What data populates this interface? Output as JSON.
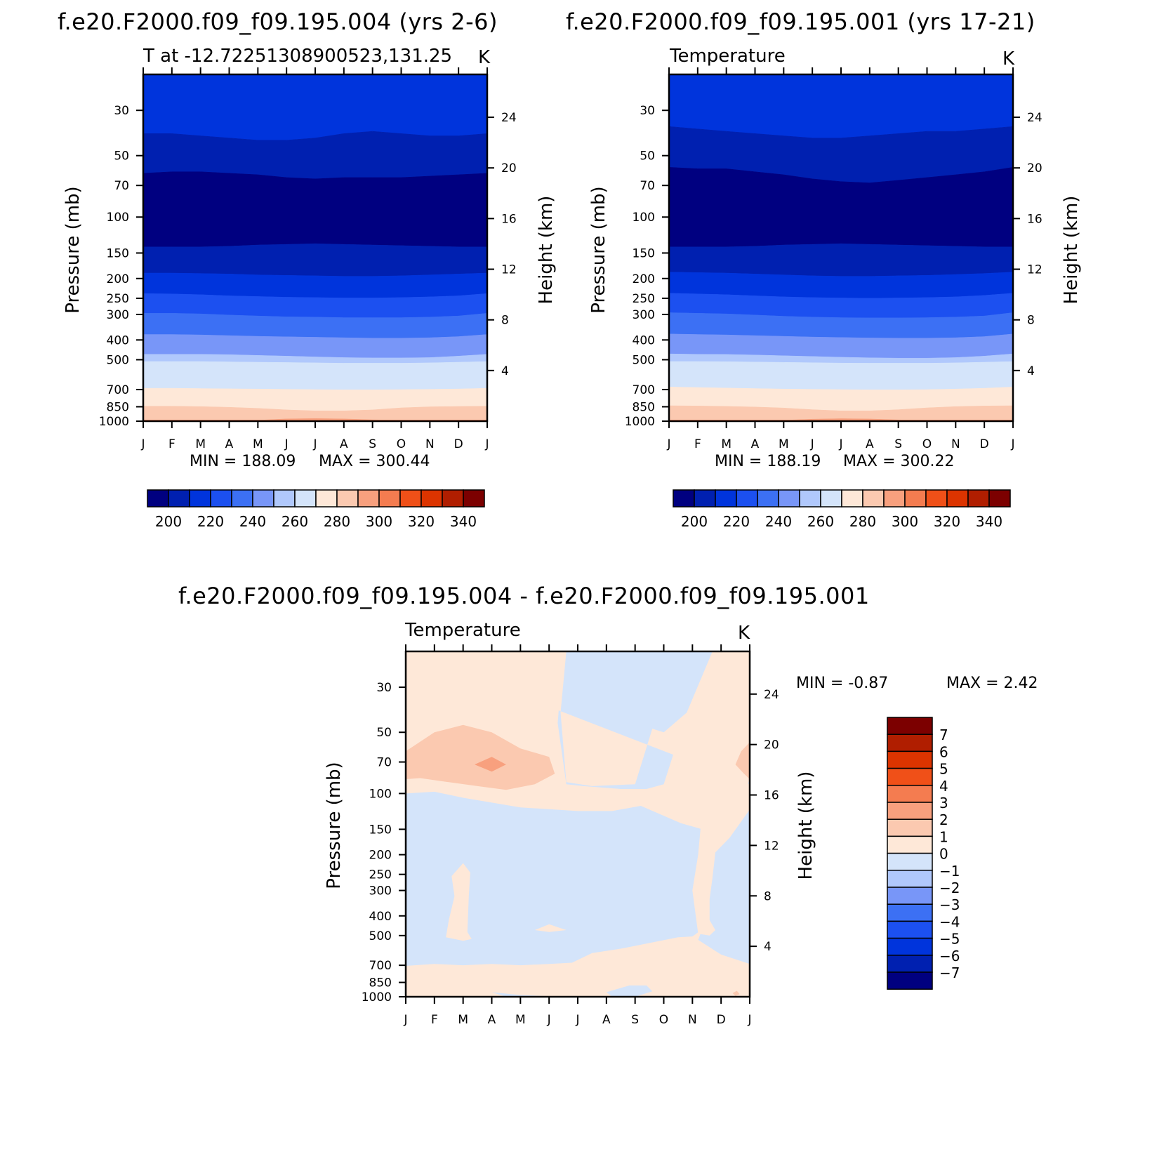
{
  "figure": {
    "background": "#ffffff"
  },
  "shared": {
    "months": [
      "J",
      "F",
      "M",
      "A",
      "M",
      "J",
      "J",
      "A",
      "S",
      "O",
      "N",
      "D",
      "J"
    ],
    "pressure_ticks": [
      30,
      50,
      70,
      100,
      150,
      200,
      250,
      300,
      400,
      500,
      700,
      850,
      1000
    ],
    "height_ticks": [
      4,
      8,
      12,
      16,
      20,
      24
    ],
    "pressure_axis_label": "Pressure (mb)",
    "height_axis_label": "Height (km)",
    "abs_palette": [
      "#000080",
      "#0020b0",
      "#0034dc",
      "#1c50f0",
      "#3c70f4",
      "#7896f8",
      "#b0c8fc",
      "#d4e4fa",
      "#fee8d8",
      "#fbc9b0",
      "#f8a07e",
      "#f47c50",
      "#f05018",
      "#dc3400",
      "#b01e00",
      "#7c0000"
    ],
    "abs_levels": [
      190,
      200,
      210,
      220,
      230,
      240,
      250,
      260,
      270,
      280,
      290,
      300,
      310,
      320,
      330,
      340,
      350
    ]
  },
  "chart_data": [
    {
      "type": "heatmap",
      "panel": "left",
      "title": "f.e20.F2000.f09_f09.195.004 (yrs 2-6)",
      "subtitle_left": "T at -12.72251308900523,131.25",
      "subtitle_right": "K",
      "xlabel": "",
      "ylabel": "Pressure (mb)",
      "y2label": "Height (km)",
      "x": [
        "J",
        "F",
        "M",
        "A",
        "M",
        "J",
        "J",
        "A",
        "S",
        "O",
        "N",
        "D",
        "J"
      ],
      "y_pressure": [
        30,
        50,
        70,
        100,
        150,
        200,
        250,
        300,
        400,
        500,
        700,
        850,
        1000
      ],
      "ylim": [
        1000,
        20
      ],
      "min_text": "MIN = 188.09",
      "max_text": "MAX = 300.44",
      "min": 188.09,
      "max": 300.44,
      "colorbar_labels": [
        "200",
        "220",
        "240",
        "260",
        "280",
        "300",
        "320",
        "340"
      ],
      "contour_boundaries_mb": {
        "note": "level-by-month approximate pressure of contour boundaries",
        "210": [
          39,
          39,
          40,
          41,
          42,
          42,
          41,
          39,
          38,
          39,
          40,
          40,
          39
        ],
        "200": [
          61,
          60,
          60,
          61,
          62,
          64,
          65,
          64,
          64,
          64,
          63,
          62,
          61
        ],
        "190": [
          140,
          140,
          140,
          139,
          137,
          136,
          135,
          136,
          137,
          138,
          139,
          140,
          140
        ],
        "220": [
          188,
          188,
          189,
          190,
          192,
          193,
          194,
          195,
          195,
          194,
          192,
          190,
          188
        ],
        "230": [
          237,
          238,
          240,
          243,
          245,
          247,
          248,
          249,
          249,
          248,
          246,
          243,
          237
        ],
        "240": [
          296,
          296,
          298,
          302,
          305,
          308,
          309,
          311,
          311,
          311,
          309,
          305,
          296
        ],
        "250": [
          376,
          376,
          378,
          381,
          384,
          386,
          388,
          390,
          392,
          392,
          390,
          385,
          376
        ],
        "260": [
          470,
          470,
          470,
          472,
          476,
          480,
          484,
          488,
          490,
          490,
          488,
          480,
          470
        ],
        "270": [
          510,
          510,
          510,
          512,
          514,
          516,
          518,
          520,
          520,
          520,
          518,
          514,
          510
        ],
        "280": [
          690,
          690,
          692,
          694,
          696,
          698,
          700,
          702,
          702,
          700,
          698,
          695,
          690
        ],
        "290": [
          845,
          845,
          848,
          855,
          865,
          880,
          890,
          890,
          880,
          860,
          850,
          847,
          845
        ],
        "300": [
          990,
          990,
          990,
          990,
          990,
          975,
          970,
          975,
          985,
          990,
          990,
          990,
          990
        ]
      }
    },
    {
      "type": "heatmap",
      "panel": "right",
      "title": "f.e20.F2000.f09_f09.195.001 (yrs 17-21)",
      "subtitle_left": "Temperature",
      "subtitle_right": "K",
      "xlabel": "",
      "ylabel": "Pressure (mb)",
      "y2label": "Height (km)",
      "x": [
        "J",
        "F",
        "M",
        "A",
        "M",
        "J",
        "J",
        "A",
        "S",
        "O",
        "N",
        "D",
        "J"
      ],
      "y_pressure": [
        30,
        50,
        70,
        100,
        150,
        200,
        250,
        300,
        400,
        500,
        700,
        850,
        1000
      ],
      "ylim": [
        1000,
        20
      ],
      "min_text": "MIN = 188.19",
      "max_text": "MAX = 300.22",
      "min": 188.19,
      "max": 300.22,
      "colorbar_labels": [
        "200",
        "220",
        "240",
        "260",
        "280",
        "300",
        "320",
        "340"
      ],
      "contour_boundaries_mb": {
        "note": "level-by-month approximate pressure of contour boundaries",
        "210": [
          36,
          37,
          38,
          39,
          40,
          41,
          41,
          40,
          39,
          38,
          38,
          37,
          36
        ],
        "200": [
          57,
          58,
          58,
          60,
          62,
          65,
          67,
          68,
          66,
          64,
          62,
          60,
          57
        ],
        "190": [
          140,
          140,
          140,
          139,
          137,
          136,
          135,
          136,
          137,
          138,
          139,
          140,
          140
        ],
        "220": [
          186,
          187,
          188,
          190,
          192,
          194,
          195,
          195,
          194,
          193,
          191,
          189,
          186
        ],
        "230": [
          236,
          238,
          240,
          243,
          246,
          248,
          249,
          250,
          249,
          248,
          246,
          242,
          236
        ],
        "240": [
          294,
          296,
          298,
          302,
          306,
          309,
          311,
          312,
          312,
          311,
          309,
          305,
          294
        ],
        "250": [
          374,
          376,
          378,
          381,
          384,
          387,
          389,
          391,
          392,
          392,
          390,
          385,
          374
        ],
        "260": [
          468,
          470,
          471,
          474,
          478,
          482,
          486,
          489,
          491,
          491,
          488,
          480,
          468
        ],
        "270": [
          510,
          510,
          511,
          513,
          515,
          517,
          519,
          520,
          520,
          520,
          518,
          514,
          510
        ],
        "280": [
          680,
          684,
          688,
          692,
          696,
          698,
          700,
          702,
          702,
          700,
          696,
          690,
          680
        ],
        "290": [
          840,
          842,
          846,
          852,
          862,
          878,
          890,
          890,
          878,
          860,
          848,
          842,
          840
        ],
        "300": [
          990,
          990,
          990,
          990,
          990,
          978,
          972,
          976,
          986,
          990,
          990,
          990,
          990
        ]
      }
    },
    {
      "type": "heatmap",
      "panel": "difference",
      "title": "f.e20.F2000.f09_f09.195.004 - f.e20.F2000.f09_f09.195.001",
      "subtitle_left": "Temperature",
      "subtitle_right": "K",
      "xlabel": "",
      "ylabel": "Pressure (mb)",
      "y2label": "Height (km)",
      "x": [
        "J",
        "F",
        "M",
        "A",
        "M",
        "J",
        "J",
        "A",
        "S",
        "O",
        "N",
        "D",
        "J"
      ],
      "y_pressure": [
        30,
        50,
        70,
        100,
        150,
        200,
        250,
        300,
        400,
        500,
        700,
        850,
        1000
      ],
      "ylim": [
        1000,
        20
      ],
      "min_text": "MIN = -0.87",
      "max_text": "MAX = 2.42",
      "min": -0.87,
      "max": 2.42,
      "colorbar_labels": [
        "7",
        "6",
        "5",
        "4",
        "3",
        "2",
        "1",
        "0",
        "-1",
        "-2",
        "-3",
        "-4",
        "-5",
        "-6",
        "-7"
      ],
      "colorbar_colors": [
        "#7c0000",
        "#b01e00",
        "#dc3400",
        "#f05018",
        "#f47c50",
        "#f8a07e",
        "#fbc9b0",
        "#fee8d8",
        "#d4e4fa",
        "#b0c8fc",
        "#7896f8",
        "#3c70f4",
        "#1c50f0",
        "#0034dc",
        "#0020b0",
        "#000080"
      ],
      "regions": {
        "0_to_1": "most of the upper domain (20-90 mb) and lower boundary layer (800-1000 mb)",
        "1_to_2": "Jan-Jun band near 60-90 mb, and near 70 mb in Dec",
        "2_to_3": "small patch near Apr at 70 mb",
        "-1_to_0": "mid-troposphere 100-700 mb over most months, and Jun-Oct upper region 20-90 mb"
      }
    }
  ]
}
